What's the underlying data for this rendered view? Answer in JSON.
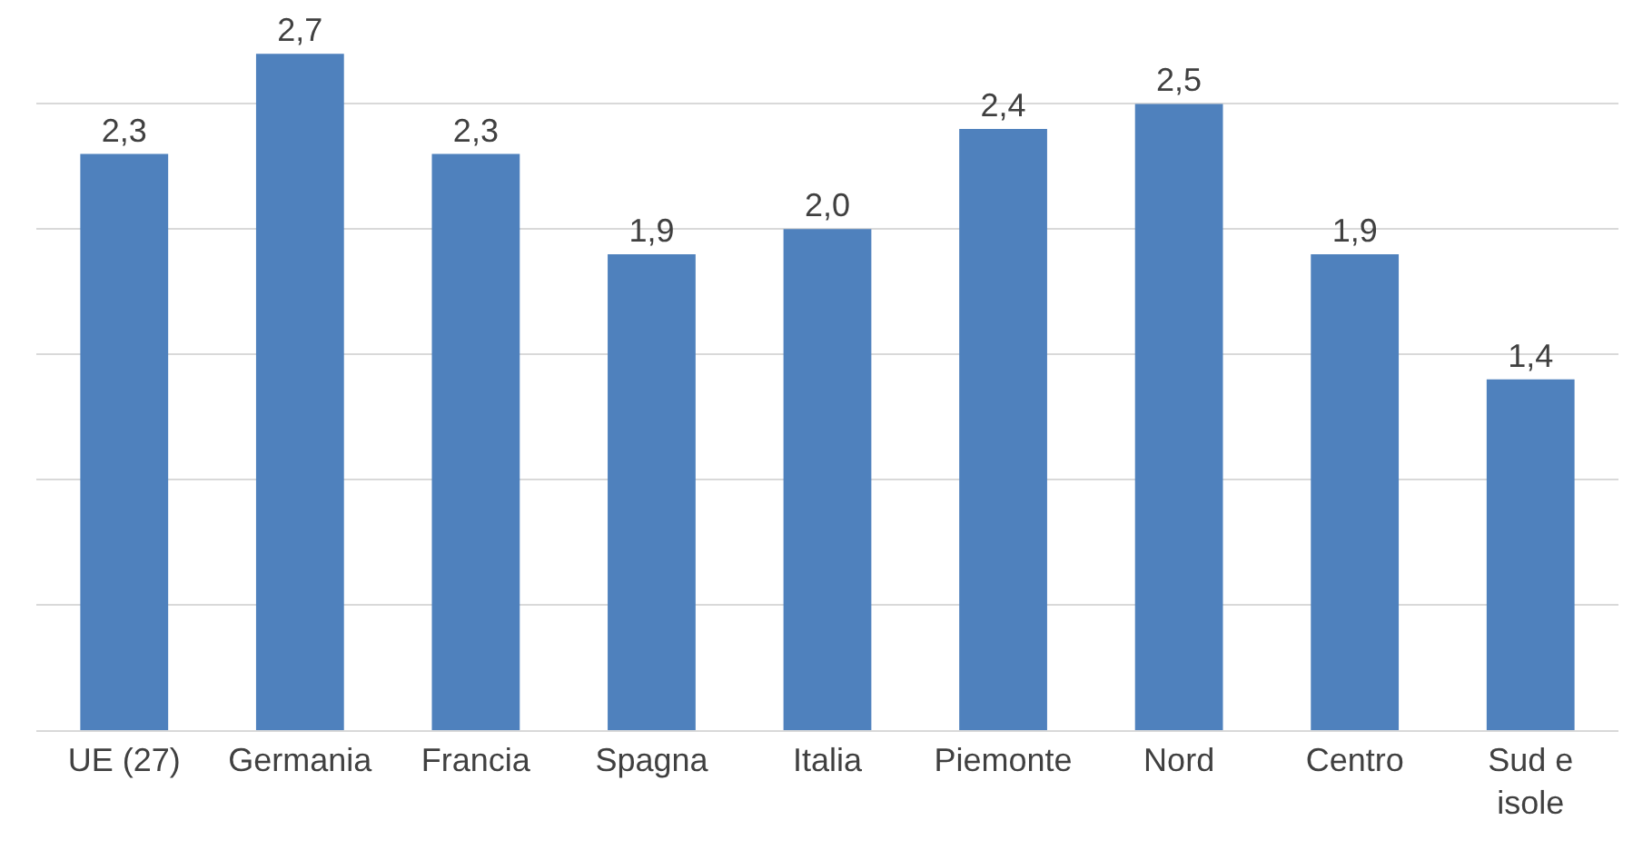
{
  "chart_data": {
    "type": "bar",
    "categories": [
      "UE (27)",
      "Germania",
      "Francia",
      "Spagna",
      "Italia",
      "Piemonte",
      "Nord",
      "Centro",
      "Sud e isole"
    ],
    "values": [
      2.3,
      2.7,
      2.3,
      1.9,
      2.0,
      2.4,
      2.5,
      1.9,
      1.4
    ],
    "value_labels": [
      "2,3",
      "2,7",
      "2,3",
      "1,9",
      "2,0",
      "2,4",
      "2,5",
      "1,9",
      "1,4"
    ],
    "color": "#4f81bd",
    "yticks": [
      {
        "value": 0,
        "label": null
      },
      {
        "value": 0.5,
        "label": null
      },
      {
        "value": 1,
        "label": null
      },
      {
        "value": 1.5,
        "label": null
      },
      {
        "value": 2,
        "label": null
      },
      {
        "value": 2.5,
        "label": null
      }
    ],
    "grid": "y",
    "tick_labels": "x",
    "legend": false
  }
}
